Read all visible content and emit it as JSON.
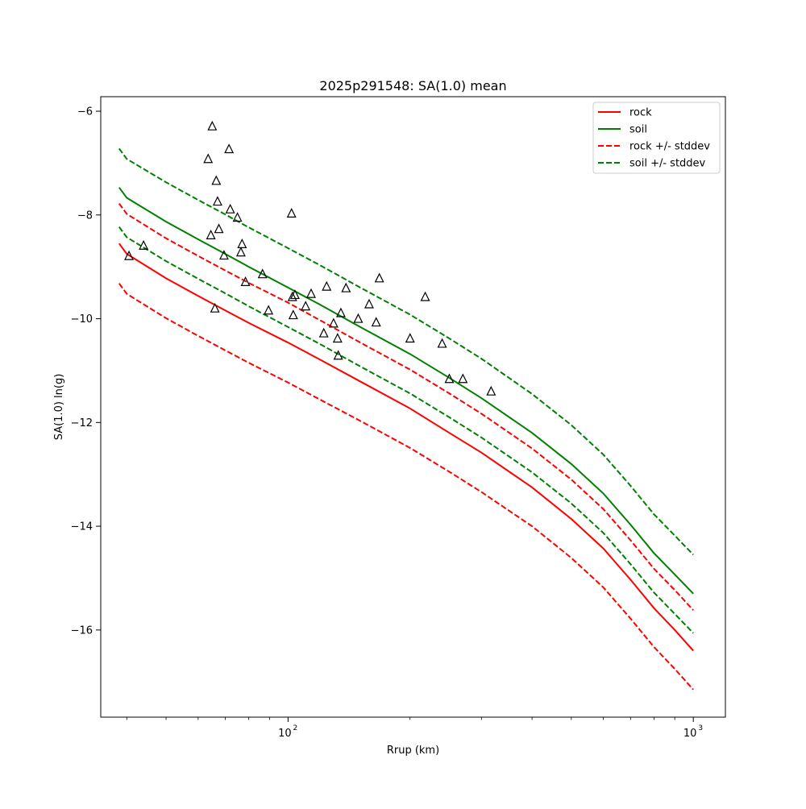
{
  "chart_data": {
    "type": "line",
    "title": "2025p291548: SA(1.0) mean",
    "xlabel": "Rrup (km)",
    "ylabel": "SA(1.0) ln(g)",
    "xscale": "log",
    "xlim": [
      34.5,
      1200
    ],
    "ylim": [
      -17.68,
      -5.72
    ],
    "xticks": [
      100,
      1000
    ],
    "xtick_labels": [
      "10",
      "10"
    ],
    "xtick_exponents": [
      "2",
      "3"
    ],
    "xticks_minor": [
      40,
      50,
      60,
      70,
      80,
      90,
      200,
      300,
      400,
      500,
      600,
      700,
      800,
      900
    ],
    "yticks": [
      -16,
      -14,
      -12,
      -10,
      -8,
      -6
    ],
    "ytick_labels": [
      "−16",
      "−14",
      "−12",
      "−10",
      "−8",
      "−6"
    ],
    "grid": false,
    "legend_position": "top-right",
    "series": [
      {
        "name": "rock",
        "color": "#ff0000",
        "style": "solid",
        "x": [
          38.3,
          40,
          50,
          60,
          70,
          80,
          100,
          120,
          150,
          200,
          250,
          300,
          400,
          500,
          600,
          700,
          800,
          900,
          1000
        ],
        "y": [
          -8.55,
          -8.75,
          -9.22,
          -9.56,
          -9.84,
          -10.08,
          -10.46,
          -10.79,
          -11.2,
          -11.73,
          -12.2,
          -12.58,
          -13.25,
          -13.86,
          -14.43,
          -15.03,
          -15.58,
          -16.0,
          -16.4
        ]
      },
      {
        "name": "soil",
        "color": "#008000",
        "style": "solid",
        "x": [
          38.3,
          40,
          50,
          60,
          70,
          80,
          100,
          120,
          150,
          200,
          250,
          300,
          400,
          500,
          600,
          700,
          800,
          900,
          1000
        ],
        "y": [
          -7.47,
          -7.67,
          -8.13,
          -8.47,
          -8.75,
          -9.0,
          -9.4,
          -9.73,
          -10.15,
          -10.68,
          -11.14,
          -11.53,
          -12.2,
          -12.8,
          -13.37,
          -13.97,
          -14.52,
          -14.93,
          -15.3
        ]
      },
      {
        "name": "rock +/- stddev",
        "color": "#ff0000",
        "style": "dashed",
        "x": [
          38.3,
          40,
          50,
          60,
          70,
          80,
          100,
          120,
          150,
          200,
          250,
          300,
          400,
          500,
          600,
          700,
          800,
          900,
          1000
        ],
        "y": [
          -7.78,
          -7.98,
          -8.45,
          -8.79,
          -9.07,
          -9.31,
          -9.69,
          -10.03,
          -10.45,
          -10.98,
          -11.44,
          -11.83,
          -12.5,
          -13.1,
          -13.67,
          -14.27,
          -14.82,
          -15.23,
          -15.62
        ]
      },
      {
        "name": "rock +/- stddev",
        "color": "#ff0000",
        "style": "dashed",
        "legend": false,
        "x": [
          38.3,
          40,
          50,
          60,
          70,
          80,
          100,
          120,
          150,
          200,
          250,
          300,
          400,
          500,
          600,
          700,
          800,
          900,
          1000
        ],
        "y": [
          -9.32,
          -9.52,
          -9.99,
          -10.33,
          -10.61,
          -10.85,
          -11.23,
          -11.56,
          -11.96,
          -12.49,
          -12.95,
          -13.34,
          -14.0,
          -14.61,
          -15.18,
          -15.78,
          -16.33,
          -16.75,
          -17.15
        ]
      },
      {
        "name": "soil +/- stddev",
        "color": "#008000",
        "style": "dashed",
        "x": [
          38.3,
          40,
          50,
          60,
          70,
          80,
          100,
          120,
          150,
          200,
          250,
          300,
          400,
          500,
          600,
          700,
          800,
          900,
          1000
        ],
        "y": [
          -6.72,
          -6.92,
          -7.37,
          -7.71,
          -7.99,
          -8.24,
          -8.64,
          -8.97,
          -9.39,
          -9.92,
          -10.38,
          -10.77,
          -11.45,
          -12.05,
          -12.62,
          -13.22,
          -13.77,
          -14.18,
          -14.55
        ]
      },
      {
        "name": "soil +/- stddev",
        "color": "#008000",
        "style": "dashed",
        "legend": false,
        "x": [
          38.3,
          40,
          50,
          60,
          70,
          80,
          100,
          120,
          150,
          200,
          250,
          300,
          400,
          500,
          600,
          700,
          800,
          900,
          1000
        ],
        "y": [
          -8.23,
          -8.43,
          -8.89,
          -9.23,
          -9.51,
          -9.76,
          -10.16,
          -10.49,
          -10.91,
          -11.44,
          -11.9,
          -12.29,
          -12.96,
          -13.56,
          -14.13,
          -14.73,
          -15.28,
          -15.69,
          -16.06
        ]
      }
    ],
    "observations": {
      "marker": "triangle",
      "color": "#000000",
      "points": [
        [
          40.5,
          -8.79
        ],
        [
          44.0,
          -8.59
        ],
        [
          63.5,
          -6.92
        ],
        [
          64.5,
          -8.39
        ],
        [
          65.0,
          -6.29
        ],
        [
          66.0,
          -9.8
        ],
        [
          66.5,
          -7.34
        ],
        [
          67.0,
          -7.74
        ],
        [
          67.5,
          -8.27
        ],
        [
          69.5,
          -8.78
        ],
        [
          71.5,
          -6.73
        ],
        [
          72.0,
          -7.89
        ],
        [
          75.0,
          -8.05
        ],
        [
          76.5,
          -8.72
        ],
        [
          77.0,
          -8.56
        ],
        [
          78.5,
          -9.29
        ],
        [
          86.5,
          -9.14
        ],
        [
          89.5,
          -9.84
        ],
        [
          102.0,
          -7.97
        ],
        [
          102.5,
          -9.58
        ],
        [
          103.0,
          -9.93
        ],
        [
          104.0,
          -9.54
        ],
        [
          110.5,
          -9.76
        ],
        [
          114.0,
          -9.52
        ],
        [
          122.5,
          -10.28
        ],
        [
          124.5,
          -9.38
        ],
        [
          129.5,
          -10.09
        ],
        [
          132.5,
          -10.38
        ],
        [
          133.0,
          -10.71
        ],
        [
          135.0,
          -9.89
        ],
        [
          139.0,
          -9.41
        ],
        [
          149.0,
          -10.0
        ],
        [
          158.5,
          -9.72
        ],
        [
          165.0,
          -10.07
        ],
        [
          168.0,
          -9.22
        ],
        [
          200.0,
          -10.38
        ],
        [
          218.0,
          -9.58
        ],
        [
          240.0,
          -10.48
        ],
        [
          250.0,
          -11.16
        ],
        [
          270.0,
          -11.16
        ],
        [
          317.0,
          -11.4
        ]
      ]
    }
  }
}
